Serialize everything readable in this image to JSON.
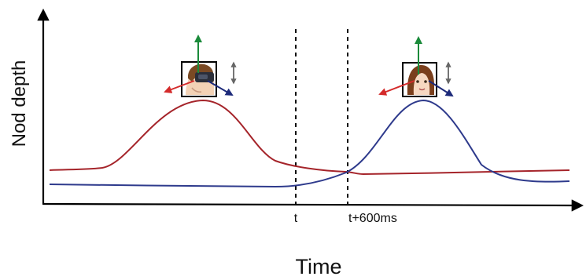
{
  "axes": {
    "y_label": "Nod depth",
    "x_label": "Time"
  },
  "markers": [
    {
      "label": "t"
    },
    {
      "label": "t+600ms"
    }
  ],
  "colors": {
    "human_curve": "#a5242a",
    "avatar_curve": "#2e3a8c",
    "up_arrow": "#1a8a3a",
    "left_arrow": "#d42b2b",
    "right_arrow": "#1d2a7a",
    "updown_arrow": "#666666"
  },
  "icons": {
    "person": "person-with-vr-headset-icon",
    "avatar": "avatar-face-icon"
  }
}
